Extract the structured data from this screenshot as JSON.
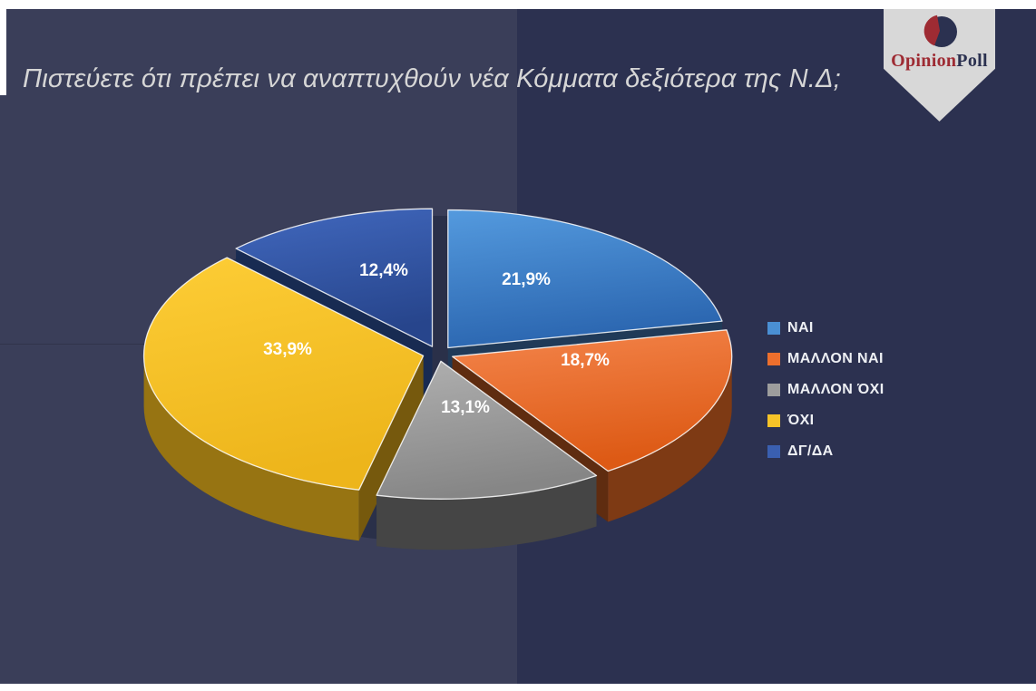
{
  "slide": {
    "title": "Πιστεύετε ότι πρέπει να αναπτυχθούν νέα Κόμματα δεξιότερα της Ν.Δ;"
  },
  "theme": {
    "frame": "#ffffff",
    "left_panel": "#3a3e59",
    "right_panel": "#2c3150",
    "base_shadow": "#2a3049",
    "title_color": "#d6d6d6"
  },
  "logo": {
    "brand_part1": "Opinion",
    "brand_part2": "Poll",
    "badge_color": "#d8d8d8",
    "brand_color1": "#9e2b33",
    "brand_color2": "#2b3150",
    "icon": "pie-chart-icon"
  },
  "chart_data": {
    "type": "pie",
    "style": "3d-exploded",
    "title": "Πιστεύετε ότι πρέπει να αναπτυχθούν νέα Κόμματα δεξιότερα της Ν.Δ;",
    "categories": [
      "ΝΑΙ",
      "ΜΑΛΛΟΝ ΝΑΙ",
      "ΜΑΛΛΟΝ ΌΧΙ",
      "ΌΧΙ",
      "ΔΓ/ΔΑ"
    ],
    "values": [
      21.9,
      18.7,
      13.1,
      33.9,
      12.4
    ],
    "value_labels": [
      "21,9%",
      "18,7%",
      "13,1%",
      "33,9%",
      "12,4%"
    ],
    "colors": [
      "#4a8fd3",
      "#ed6f2d",
      "#9d9d9d",
      "#f6c328",
      "#3a5fb0"
    ],
    "colors_light": [
      "#549ade",
      "#f4854c",
      "#b0b0b0",
      "#fdcd36",
      "#4168be"
    ],
    "colors_dark": [
      "#2b66b0",
      "#dd5a15",
      "#868686",
      "#edb51b",
      "#27458c"
    ],
    "side_colors": [
      "#1e4a7e",
      "#7e3a14",
      "#454545",
      "#977412",
      "#1b3263"
    ],
    "cut_colors": [
      "#203a58",
      "#5f2c10",
      "#3a3a3a",
      "#76590d",
      "#182b52"
    ],
    "legend_position": "right",
    "start_angle_deg": 0,
    "direction": "clockwise",
    "label_color": "#ffffff"
  }
}
